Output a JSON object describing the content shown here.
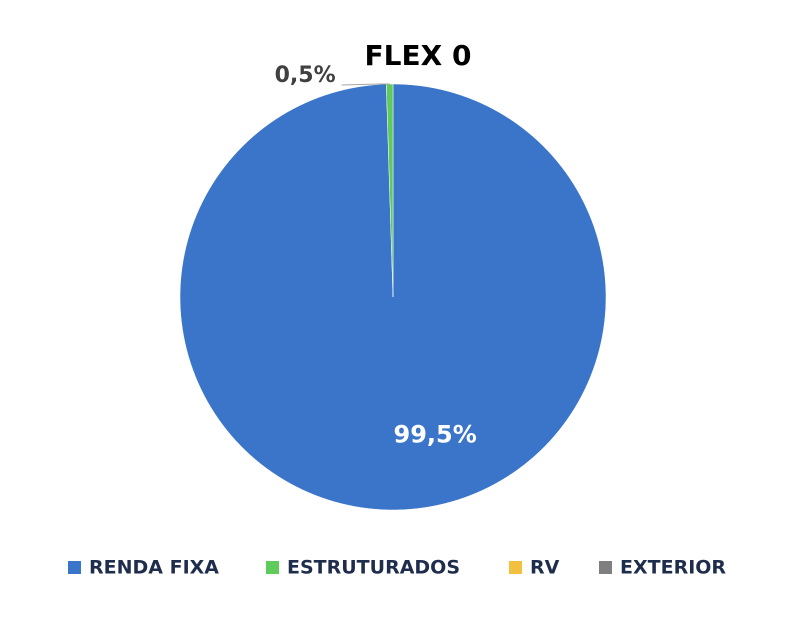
{
  "chart_data": {
    "type": "pie",
    "title": "FLEX 0",
    "categories": [
      "RENDA FIXA",
      "ESTRUTURADOS",
      "RV",
      "EXTERIOR"
    ],
    "values": [
      99.5,
      0.5,
      0,
      0
    ],
    "value_labels": [
      "99,5%",
      "0,5%",
      null,
      null
    ],
    "colors": [
      "#3b75c9",
      "#5ecb5b",
      "#f3bf3f",
      "#7f7f7f"
    ],
    "legend": "bottom"
  }
}
